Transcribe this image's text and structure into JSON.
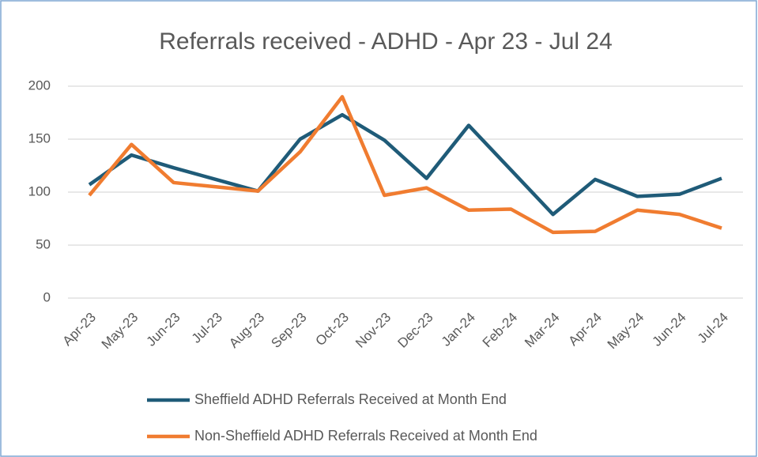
{
  "chart_data": {
    "type": "line",
    "title": "Referrals received - ADHD - Apr 23 - Jul 24",
    "categories": [
      "Apr-23",
      "May-23",
      "Jun-23",
      "Jul-23",
      "Aug-23",
      "Sep-23",
      "Oct-23",
      "Nov-23",
      "Dec-23",
      "Jan-24",
      "Feb-24",
      "Mar-24",
      "Apr-24",
      "May-24",
      "Jun-24",
      "Jul-24"
    ],
    "series": [
      {
        "name": "Sheffield ADHD Referrals Received at Month End",
        "color": "#1f5b78",
        "values": [
          107,
          135,
          123,
          112,
          101,
          150,
          173,
          149,
          113,
          163,
          121,
          79,
          112,
          96,
          98,
          113
        ]
      },
      {
        "name": "Non-Sheffield ADHD Referrals Received at Month End",
        "color": "#f07c30",
        "values": [
          97,
          145,
          109,
          105,
          101,
          138,
          190,
          97,
          104,
          83,
          84,
          62,
          63,
          83,
          79,
          66
        ]
      }
    ],
    "ylim": [
      0,
      200
    ],
    "yticks": [
      0,
      50,
      100,
      150,
      200
    ],
    "grid": true,
    "legend": "bottom"
  }
}
